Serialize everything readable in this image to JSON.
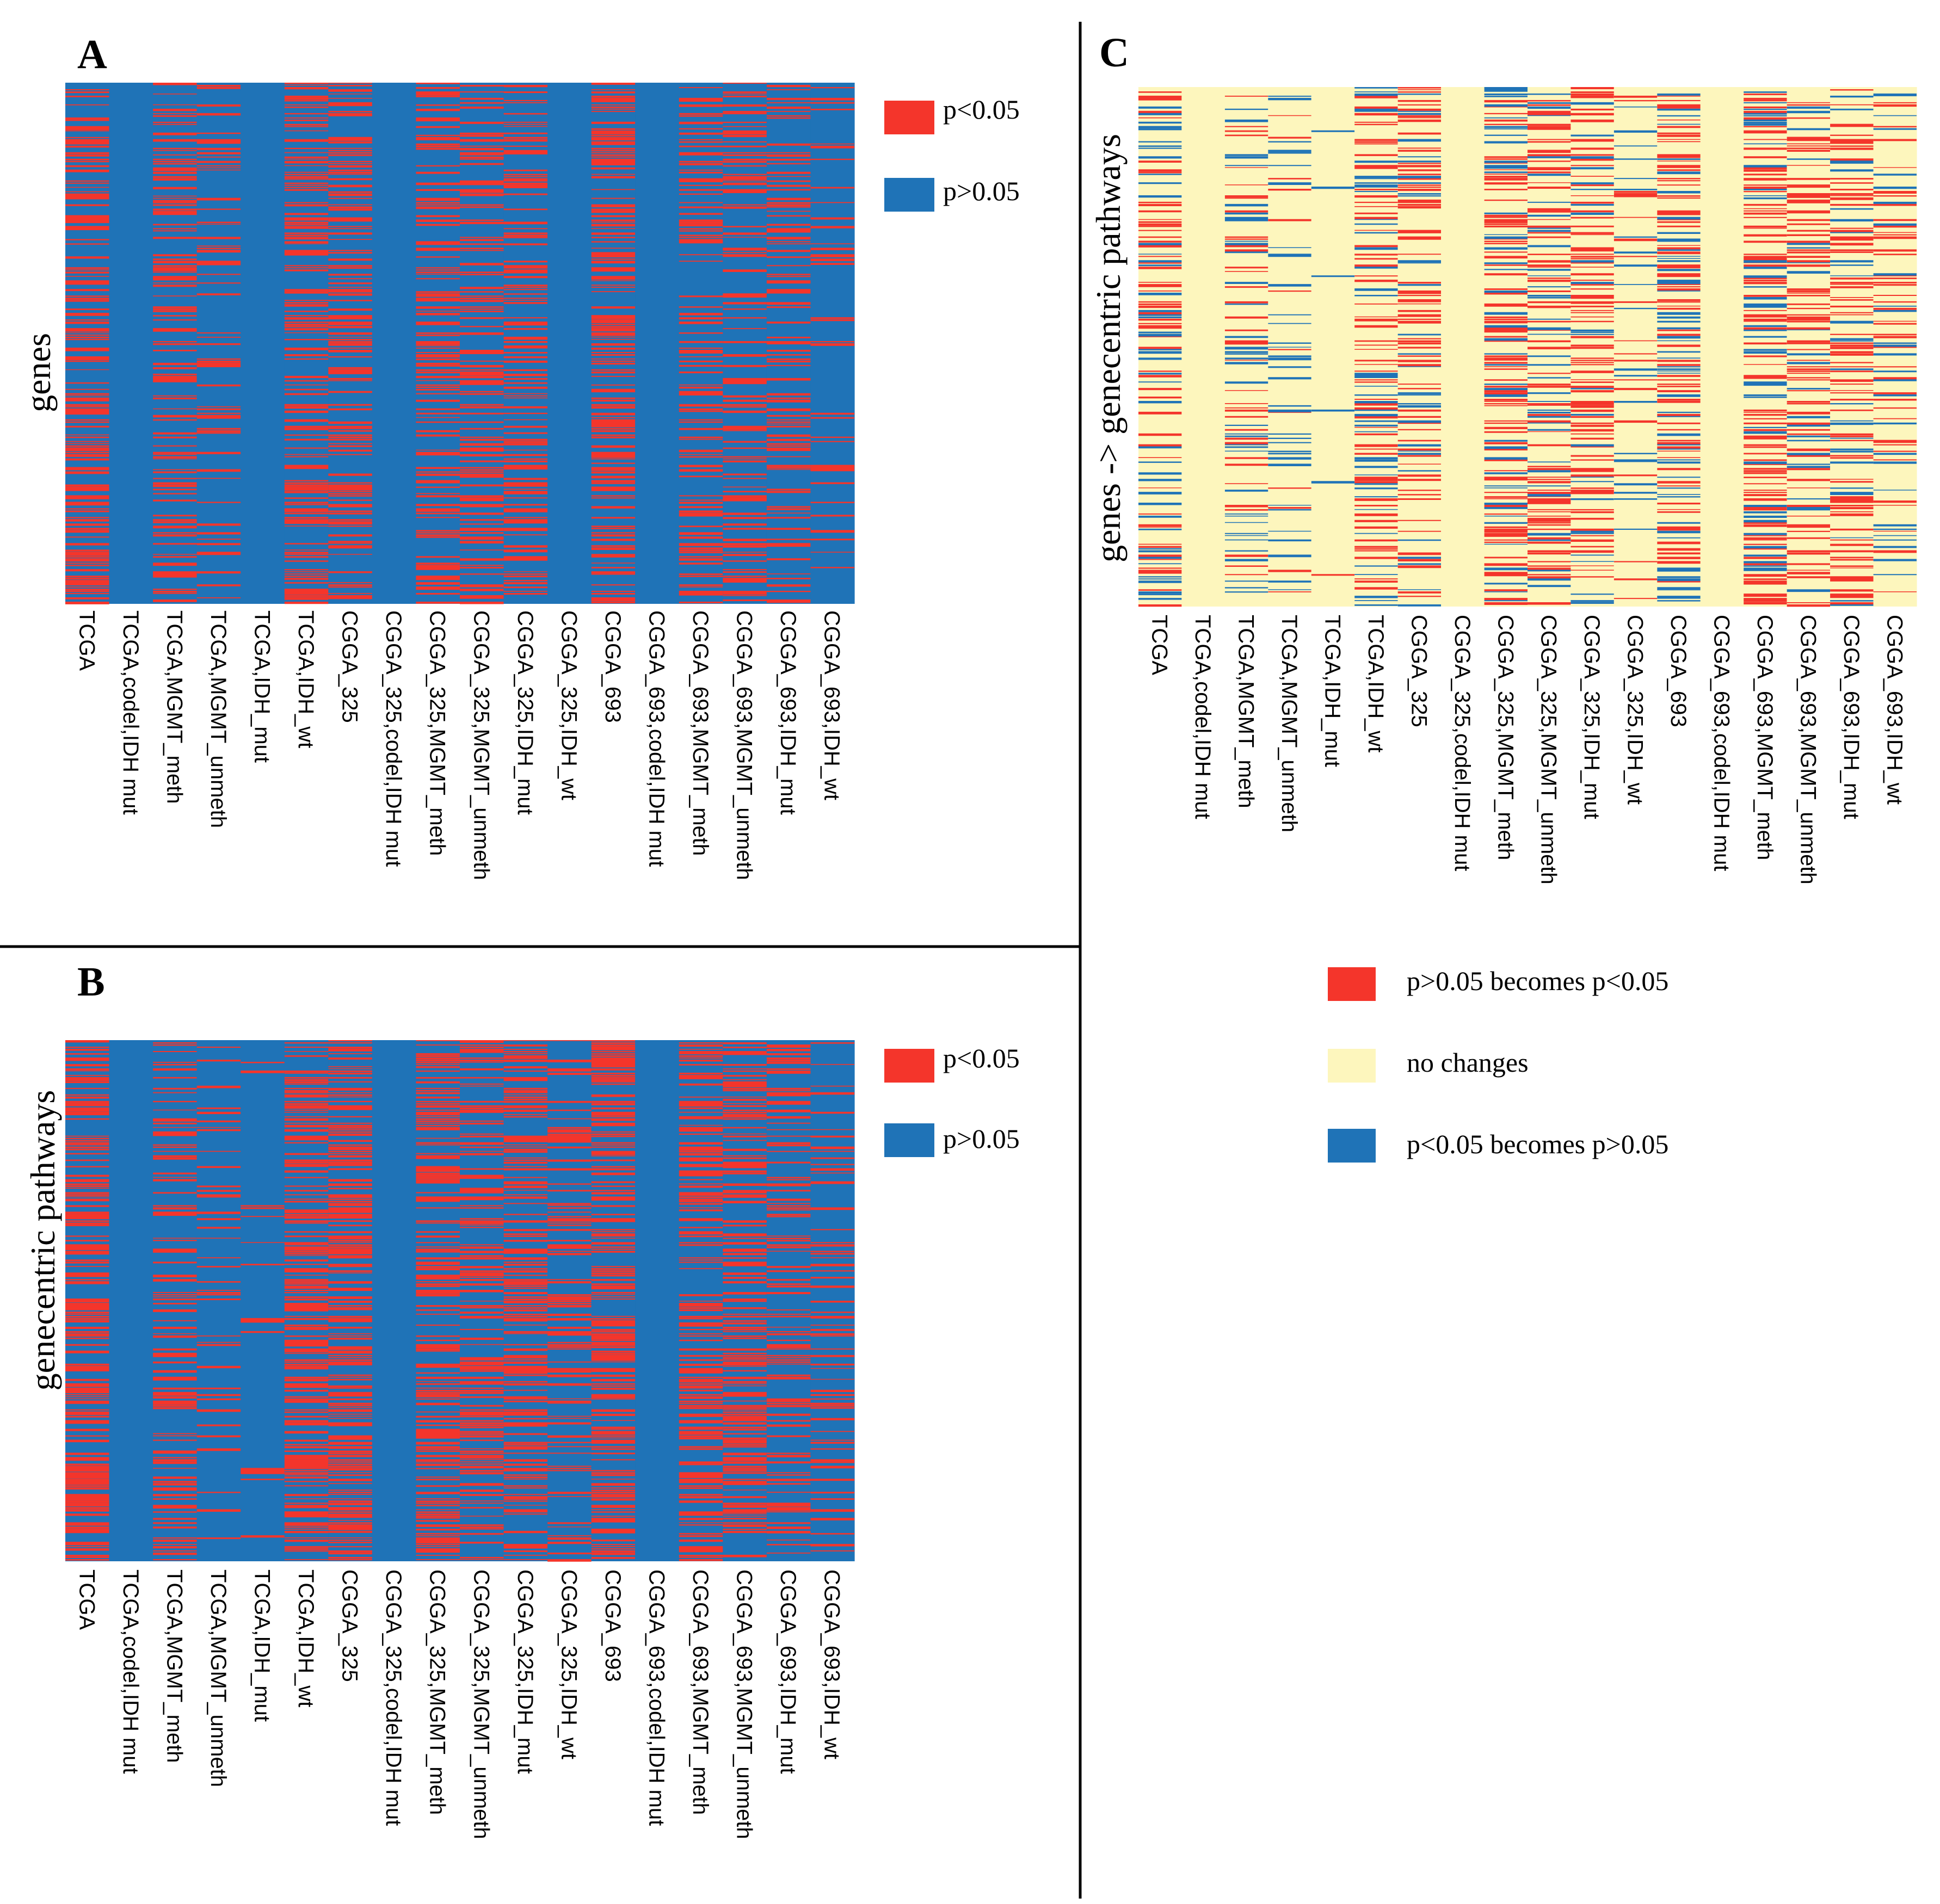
{
  "figure": {
    "panels": {
      "A": {
        "label": "A",
        "ylabel": "genes",
        "legend": [
          "p<0.05",
          "p>0.05"
        ]
      },
      "B": {
        "label": "B",
        "ylabel": "genecentric pathways",
        "legend": [
          "p<0.05",
          "p>0.05"
        ]
      },
      "C": {
        "label": "C",
        "ylabel": "genes -> genecentric pathways",
        "legend": [
          "p>0.05 becomes p<0.05",
          "no changes",
          "p<0.05 becomes p>0.05"
        ]
      }
    }
  },
  "colors": {
    "significant": "#f4352b",
    "nonsignificant": "#1f73b7",
    "no_change": "#fdf6bd",
    "becomes_significant": "#f4352b",
    "becomes_nonsignificant": "#1f73b7",
    "white_line": "#e8eef5"
  },
  "chart_data": [
    {
      "panel": "A",
      "type": "heatmap",
      "title": "",
      "xlabel": "",
      "ylabel": "genes",
      "categories": [
        "TCGA",
        "TCGA,codel,IDH mut",
        "TCGA,MGMT_meth",
        "TCGA,MGMT_unmeth",
        "TCGA,IDH_mut",
        "TCGA,IDH_wt",
        "CGGA_325",
        "CGGA_325,codel,IDH mut",
        "CGGA_325,MGMT_meth",
        "CGGA_325,MGMT_unmeth",
        "CGGA_325,IDH_mut",
        "CGGA_325,IDH_wt",
        "CGGA_693",
        "CGGA_693,codel,IDH mut",
        "CGGA_693,MGMT_meth",
        "CGGA_693,MGMT_unmeth",
        "CGGA_693,IDH_mut",
        "CGGA_693,IDH_wt"
      ],
      "series": [
        {
          "name": "p<0.05",
          "fraction_by_column": [
            0.62,
            0.0,
            0.42,
            0.28,
            0.0,
            0.6,
            0.58,
            0.0,
            0.5,
            0.5,
            0.45,
            0.0,
            0.58,
            0.0,
            0.45,
            0.42,
            0.36,
            0.22
          ]
        },
        {
          "name": "p>0.05",
          "fraction_by_column": [
            0.38,
            1.0,
            0.58,
            0.72,
            1.0,
            0.4,
            0.42,
            1.0,
            0.5,
            0.5,
            0.55,
            1.0,
            0.42,
            1.0,
            0.55,
            0.58,
            0.64,
            0.78
          ]
        }
      ]
    },
    {
      "panel": "B",
      "type": "heatmap",
      "title": "",
      "xlabel": "",
      "ylabel": "genecentric pathways",
      "categories": [
        "TCGA",
        "TCGA,codel,IDH mut",
        "TCGA,MGMT_meth",
        "TCGA,MGMT_unmeth",
        "TCGA,IDH_mut",
        "TCGA,IDH_wt",
        "CGGA_325",
        "CGGA_325,codel,IDH mut",
        "CGGA_325,MGMT_meth",
        "CGGA_325,MGMT_unmeth",
        "CGGA_325,IDH_mut",
        "CGGA_325,IDH_wt",
        "CGGA_693",
        "CGGA_693,codel,IDH mut",
        "CGGA_693,MGMT_meth",
        "CGGA_693,MGMT_unmeth",
        "CGGA_693,IDH_mut",
        "CGGA_693,IDH_wt"
      ],
      "series": [
        {
          "name": "p<0.05",
          "fraction_by_column": [
            0.7,
            0.0,
            0.45,
            0.18,
            0.08,
            0.72,
            0.74,
            0.0,
            0.66,
            0.6,
            0.62,
            0.35,
            0.7,
            0.0,
            0.62,
            0.6,
            0.56,
            0.3
          ]
        },
        {
          "name": "p>0.05",
          "fraction_by_column": [
            0.3,
            1.0,
            0.55,
            0.82,
            0.92,
            0.28,
            0.26,
            1.0,
            0.34,
            0.4,
            0.38,
            0.65,
            0.3,
            1.0,
            0.38,
            0.4,
            0.44,
            0.7
          ]
        }
      ]
    },
    {
      "panel": "C",
      "type": "heatmap",
      "title": "",
      "xlabel": "",
      "ylabel": "genes -> genecentric pathways",
      "categories": [
        "TCGA",
        "TCGA,codel,IDH mut",
        "TCGA,MGMT_meth",
        "TCGA,MGMT_unmeth",
        "TCGA,IDH_mut",
        "TCGA,IDH_wt",
        "CGGA_325",
        "CGGA_325,codel,IDH mut",
        "CGGA_325,MGMT_meth",
        "CGGA_325,MGMT_unmeth",
        "CGGA_325,IDH_mut",
        "CGGA_325,IDH_wt",
        "CGGA_693",
        "CGGA_693,codel,IDH mut",
        "CGGA_693,MGMT_meth",
        "CGGA_693,MGMT_unmeth",
        "CGGA_693,IDH_mut",
        "CGGA_693,IDH_wt"
      ],
      "series": [
        {
          "name": "p>0.05 becomes p<0.05",
          "fraction_by_column": [
            0.28,
            0.0,
            0.22,
            0.08,
            0.01,
            0.3,
            0.38,
            0.0,
            0.4,
            0.36,
            0.42,
            0.12,
            0.36,
            0.0,
            0.4,
            0.4,
            0.42,
            0.2
          ]
        },
        {
          "name": "no changes",
          "fraction_by_column": [
            0.54,
            1.0,
            0.6,
            0.8,
            0.97,
            0.5,
            0.5,
            1.0,
            0.42,
            0.46,
            0.46,
            0.8,
            0.46,
            1.0,
            0.44,
            0.46,
            0.46,
            0.68
          ]
        },
        {
          "name": "p<0.05 becomes p>0.05",
          "fraction_by_column": [
            0.18,
            0.0,
            0.18,
            0.12,
            0.02,
            0.2,
            0.12,
            0.0,
            0.18,
            0.18,
            0.12,
            0.08,
            0.18,
            0.0,
            0.16,
            0.14,
            0.12,
            0.12
          ]
        }
      ]
    }
  ]
}
